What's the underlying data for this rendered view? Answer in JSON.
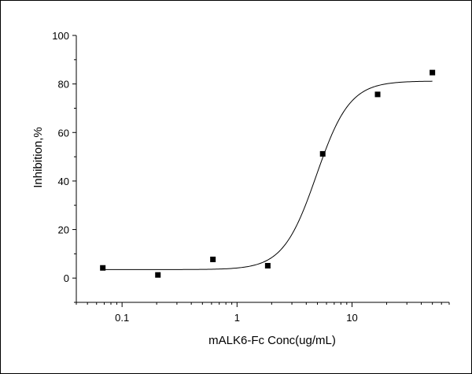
{
  "chart_data": {
    "type": "scatter",
    "title": "",
    "xlabel": "mALK6-Fc  Conc(ug/mL)",
    "ylabel": "Inhibition,%",
    "x_scale": "log",
    "xlim": [
      0.04,
      70
    ],
    "ylim": [
      -10,
      100
    ],
    "x_ticks": [
      0.1,
      1,
      10
    ],
    "x_tick_labels": [
      "0.1",
      "1",
      "10"
    ],
    "y_ticks": [
      0,
      20,
      40,
      60,
      80,
      100
    ],
    "y_tick_labels": [
      "0",
      "20",
      "40",
      "60",
      "80",
      "100"
    ],
    "grid": false,
    "legend": "none",
    "colors": {
      "points": "#000000",
      "curve": "#000000",
      "axes": "#000000"
    },
    "series": [
      {
        "marker": "square",
        "x": [
          0.068,
          0.205,
          0.617,
          1.85,
          5.56,
          16.7,
          50
        ],
        "y": [
          4.2,
          1.3,
          7.7,
          5.1,
          51.2,
          75.7,
          84.7
        ]
      }
    ],
    "fit_curve": {
      "model": "4PL",
      "bottom": 3.5,
      "top": 81.2,
      "ec50": 4.9,
      "hill": 3.0,
      "x_range": [
        0.068,
        50
      ]
    }
  }
}
